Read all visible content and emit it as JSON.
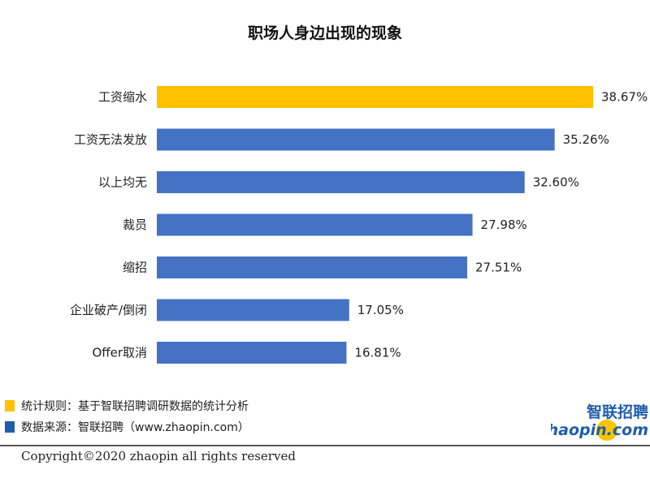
{
  "chart_data": {
    "type": "bar",
    "orientation": "horizontal",
    "title": "职场人身边出现的现象",
    "categories": [
      "工资缩水",
      "工资无法发放",
      "以上均无",
      "裁员",
      "缩招",
      "企业破产/倒闭",
      "Offer取消"
    ],
    "values": [
      38.67,
      35.26,
      32.6,
      27.98,
      27.51,
      17.05,
      16.81
    ],
    "value_labels": [
      "38.67%",
      "35.26%",
      "32.60%",
      "27.98%",
      "27.51%",
      "17.05%",
      "16.81%"
    ],
    "bar_colors": [
      "#FFC000",
      "#4472C4",
      "#4472C4",
      "#4472C4",
      "#4472C4",
      "#4472C4",
      "#4472C4"
    ],
    "xlim": [
      0,
      38.67
    ],
    "grid": false,
    "legend": "bottom-left"
  },
  "legend": [
    {
      "color": "#FFC000",
      "text": "统计规则：基于智联招聘调研数据的统计分析"
    },
    {
      "color": "#1F5DAB",
      "text": "数据来源：智联招聘（www.zhaopin.com）"
    }
  ],
  "footer": {
    "copyright": "Copyright©2020 zhaopin all rights reserved"
  },
  "logo": {
    "cn_text": "智联招聘",
    "en_text": "zhaopin.com",
    "colors": [
      "#1E5DAA",
      "#F7C600"
    ]
  }
}
